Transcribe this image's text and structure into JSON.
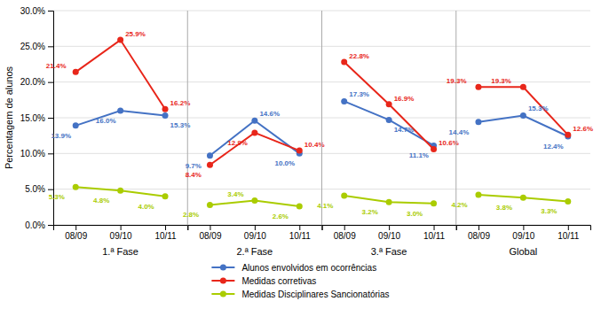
{
  "chart_data": [
    {
      "type": "line",
      "xlabel": "1.ª Fase",
      "ylabel": "Percentagem de alunos",
      "categories": [
        "08/09",
        "09/10",
        "10/11"
      ],
      "series": [
        {
          "name": "Alunos envolvidos em ocorrências",
          "color": "#4472C4",
          "marker": "circle",
          "values": [
            13.9,
            16.0,
            15.3
          ],
          "value_labels": [
            "13.9%",
            "16.0%",
            "15.3%"
          ]
        },
        {
          "name": "Medidas corretivas",
          "color": "#E8261A",
          "marker": "circle",
          "values": [
            21.4,
            25.9,
            16.2
          ],
          "value_labels": [
            "21.4%",
            "25.9%",
            "16.2%"
          ]
        },
        {
          "name": "Medidas Disciplinares Sancionatórias",
          "color": "#AACC00",
          "marker": "circle",
          "values": [
            5.3,
            4.8,
            4.0
          ],
          "value_labels": [
            "5.3%",
            "4.8%",
            "4.0%"
          ]
        }
      ],
      "ylim": [
        0.0,
        30.0
      ],
      "yticks": [
        {
          "value": 0.0,
          "label": "0.0%"
        },
        {
          "value": 5.0,
          "label": "5.0%"
        },
        {
          "value": 10.0,
          "label": "10.0%"
        },
        {
          "value": 15.0,
          "label": "15.0%"
        },
        {
          "value": 20.0,
          "label": "20.0%"
        },
        {
          "value": 25.0,
          "label": "25.0%"
        },
        {
          "value": 30.0,
          "label": "30.0%"
        }
      ],
      "grid": true,
      "data_labels": true,
      "legend": "bottom"
    },
    {
      "type": "line",
      "xlabel": "2.ª Fase",
      "categories": [
        "08/09",
        "09/10",
        "10/11"
      ],
      "series": [
        {
          "color": "#4472C4",
          "marker": "circle",
          "values": [
            9.7,
            14.6,
            10.0
          ],
          "value_labels": [
            "9.7%",
            "14.6%",
            "10.0%"
          ]
        },
        {
          "color": "#E8261A",
          "marker": "circle",
          "values": [
            8.4,
            12.9,
            10.4
          ],
          "value_labels": [
            "8.4%",
            "12.9%",
            "10.4%"
          ]
        },
        {
          "color": "#AACC00",
          "marker": "circle",
          "values": [
            2.8,
            3.4,
            2.6
          ],
          "value_labels": [
            "2.8%",
            "3.4%",
            "2.6%"
          ]
        }
      ],
      "ylim": [
        0.0,
        30.0
      ],
      "yticks": [
        0.0,
        5.0,
        10.0,
        15.0,
        20.0,
        25.0,
        30.0
      ],
      "grid": true,
      "data_labels": true,
      "tick_labels": "x"
    },
    {
      "type": "line",
      "xlabel": "3.ª Fase",
      "categories": [
        "08/09",
        "09/10",
        "10/11"
      ],
      "series": [
        {
          "color": "#4472C4",
          "marker": "circle",
          "values": [
            17.3,
            14.7,
            11.1
          ],
          "value_labels": [
            "17.3%",
            "14.7%",
            "11.1%"
          ]
        },
        {
          "color": "#E8261A",
          "marker": "circle",
          "values": [
            22.8,
            16.9,
            10.6
          ],
          "value_labels": [
            "22.8%",
            "16.9%",
            "10.6%"
          ]
        },
        {
          "color": "#AACC00",
          "marker": "circle",
          "values": [
            4.1,
            3.2,
            3.0
          ],
          "value_labels": [
            "4.1%",
            "3.2%",
            "3.0%"
          ]
        }
      ],
      "ylim": [
        0.0,
        30.0
      ],
      "yticks": [
        0.0,
        5.0,
        10.0,
        15.0,
        20.0,
        25.0,
        30.0
      ],
      "grid": true,
      "data_labels": true,
      "tick_labels": "x"
    },
    {
      "type": "line",
      "xlabel": "Global",
      "categories": [
        "08/09",
        "09/10",
        "10/11"
      ],
      "series": [
        {
          "color": "#4472C4",
          "marker": "circle",
          "values": [
            14.4,
            15.3,
            12.4
          ],
          "value_labels": [
            "14.4%",
            "15.3%",
            "12.4%"
          ]
        },
        {
          "color": "#E8261A",
          "marker": "circle",
          "values": [
            19.3,
            19.3,
            12.6
          ],
          "value_labels": [
            "19.3%",
            "19.3%",
            "12.6%"
          ]
        },
        {
          "color": "#AACC00",
          "marker": "circle",
          "values": [
            4.2,
            3.8,
            3.3
          ],
          "value_labels": [
            "4.2%",
            "3.8%",
            "3.3%"
          ]
        }
      ],
      "ylim": [
        0.0,
        30.0
      ],
      "yticks": [
        0.0,
        5.0,
        10.0,
        15.0,
        20.0,
        25.0,
        30.0
      ],
      "grid": true,
      "data_labels": true,
      "tick_labels": "x"
    }
  ]
}
